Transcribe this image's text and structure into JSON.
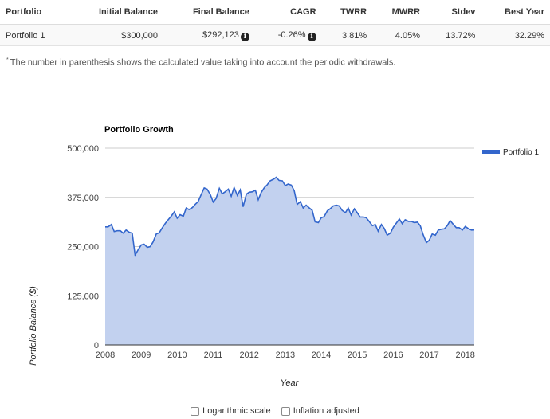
{
  "table": {
    "headers": [
      "Portfolio",
      "Initial Balance",
      "Final Balance",
      "CAGR",
      "TWRR",
      "MWRR",
      "Stdev",
      "Best Year"
    ],
    "row": {
      "portfolio": "Portfolio 1",
      "initial_balance": "$300,000",
      "final_balance": "$292,123",
      "cagr": "-0.26%",
      "twrr": "3.81%",
      "mwrr": "4.05%",
      "stdev": "13.72%",
      "best_year": "32.29%"
    }
  },
  "footnote": {
    "marker": "*",
    "text": "The number in parenthesis shows the calculated value taking into account the periodic withdrawals."
  },
  "options": {
    "log_scale": "Logarithmic scale",
    "inflation": "Inflation adjusted"
  },
  "colors": {
    "line": "#3366cc",
    "area": "#c2d1ef",
    "grid": "#cccccc"
  },
  "chart_data": {
    "type": "area",
    "title": "Portfolio Growth",
    "xlabel": "Year",
    "ylabel": "Portfolio Balance ($)",
    "xlim": [
      2008,
      2018.25
    ],
    "ylim": [
      0,
      500000
    ],
    "yticks": [
      0,
      125000,
      250000,
      375000,
      500000
    ],
    "ytick_labels": [
      "0",
      "125,000",
      "250,000",
      "375,000",
      "500,000"
    ],
    "xticks": [
      2008,
      2009,
      2010,
      2011,
      2012,
      2013,
      2014,
      2015,
      2016,
      2017,
      2018
    ],
    "xtick_labels": [
      "2008",
      "2009",
      "2010",
      "2011",
      "2012",
      "2013",
      "2014",
      "2015",
      "2016",
      "2017",
      "2018"
    ],
    "legend_position": "top-right",
    "grid": true,
    "series": [
      {
        "name": "Portfolio 1",
        "x": [
          2008,
          2008.08,
          2008.17,
          2008.25,
          2008.33,
          2008.42,
          2008.5,
          2008.58,
          2008.67,
          2008.75,
          2008.83,
          2008.92,
          2009,
          2009.08,
          2009.17,
          2009.25,
          2009.33,
          2009.42,
          2009.5,
          2009.58,
          2009.67,
          2009.75,
          2009.83,
          2009.92,
          2010,
          2010.08,
          2010.17,
          2010.25,
          2010.33,
          2010.42,
          2010.5,
          2010.58,
          2010.67,
          2010.75,
          2010.83,
          2010.92,
          2011,
          2011.08,
          2011.17,
          2011.25,
          2011.33,
          2011.42,
          2011.5,
          2011.58,
          2011.67,
          2011.75,
          2011.83,
          2011.92,
          2012,
          2012.08,
          2012.17,
          2012.25,
          2012.33,
          2012.42,
          2012.5,
          2012.58,
          2012.67,
          2012.75,
          2012.83,
          2012.92,
          2013,
          2013.08,
          2013.17,
          2013.25,
          2013.33,
          2013.42,
          2013.5,
          2013.58,
          2013.67,
          2013.75,
          2013.83,
          2013.92,
          2014,
          2014.08,
          2014.17,
          2014.25,
          2014.33,
          2014.42,
          2014.5,
          2014.58,
          2014.67,
          2014.75,
          2014.83,
          2014.92,
          2015,
          2015.08,
          2015.17,
          2015.25,
          2015.33,
          2015.42,
          2015.5,
          2015.58,
          2015.67,
          2015.75,
          2015.83,
          2015.92,
          2016,
          2016.08,
          2016.17,
          2016.25,
          2016.33,
          2016.42,
          2016.5,
          2016.58,
          2016.67,
          2016.75,
          2016.83,
          2016.92,
          2017,
          2017.08,
          2017.17,
          2017.25,
          2017.33,
          2017.42,
          2017.5,
          2017.58,
          2017.67,
          2017.75,
          2017.83,
          2017.92,
          2018,
          2018.08,
          2018.17,
          2018.25
        ],
        "values": [
          300000,
          300000,
          306000,
          288000,
          290000,
          290000,
          284000,
          292000,
          286000,
          284000,
          228000,
          243000,
          254000,
          256000,
          248000,
          250000,
          262000,
          282000,
          285000,
          297000,
          309000,
          318000,
          327000,
          338000,
          322000,
          331000,
          327000,
          348000,
          344000,
          349000,
          357000,
          364000,
          383000,
          399000,
          396000,
          382000,
          363000,
          372000,
          398000,
          384000,
          389000,
          396000,
          378000,
          400000,
          380000,
          394000,
          351000,
          383000,
          388000,
          389000,
          393000,
          369000,
          387000,
          400000,
          407000,
          417000,
          421000,
          426000,
          418000,
          417000,
          405000,
          409000,
          406000,
          392000,
          357000,
          364000,
          348000,
          355000,
          348000,
          342000,
          313000,
          311000,
          323000,
          326000,
          341000,
          346000,
          353000,
          355000,
          353000,
          342000,
          336000,
          348000,
          330000,
          346000,
          336000,
          325000,
          325000,
          323000,
          314000,
          303000,
          306000,
          289000,
          306000,
          296000,
          279000,
          284000,
          299000,
          309000,
          320000,
          308000,
          318000,
          314000,
          314000,
          311000,
          312000,
          303000,
          280000,
          260000,
          266000,
          282000,
          279000,
          292000,
          294000,
          295000,
          303000,
          316000,
          306000,
          298000,
          298000,
          292000,
          301000,
          296000,
          292000,
          292123
        ]
      }
    ]
  }
}
